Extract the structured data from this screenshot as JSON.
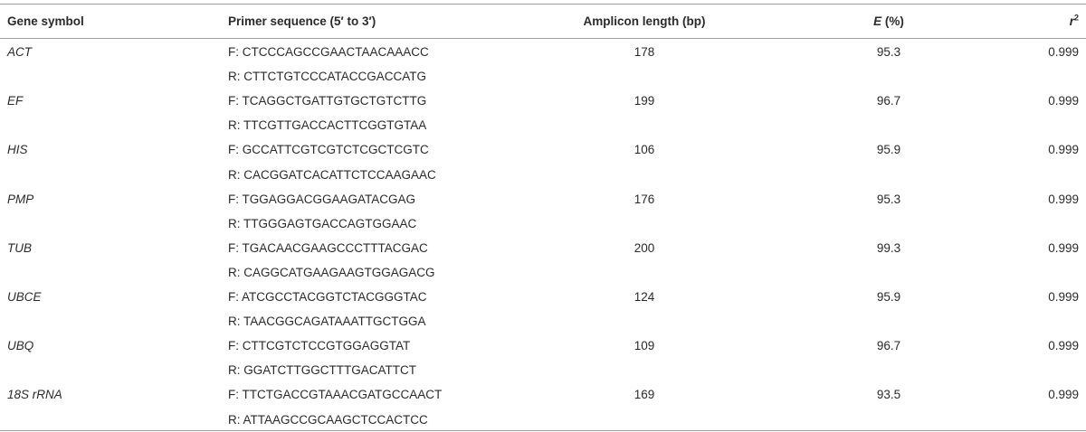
{
  "table": {
    "header": [
      "Gene symbol",
      "Primer sequence (5′ to 3′)",
      "Amplicon length (bp)",
      {
        "symbol": "E",
        "unit": "(%)"
      },
      {
        "symbol": "r",
        "superscript": "2"
      }
    ],
    "rows": [
      [
        "ACT",
        "F: CTCCCAGCCGAACTAACAAACC",
        "R: CTTCTGTCCCATACCGACCATG",
        178,
        95.3,
        0.999
      ],
      [
        "EF",
        "F: TCAGGCTGATTGTGCTGTCTTG",
        "R: TTCGTTGACCACTTCGGTGTAA",
        199,
        96.7,
        0.999
      ],
      [
        "HIS",
        "F: GCCATTCGTCGTCTCGCTCGTC",
        "R: CACGGATCACATTCTCCAAGAAC",
        106,
        95.9,
        0.999
      ],
      [
        "PMP",
        "F: TGGAGGACGGAAGATACGAG",
        "R: TTGGGAGTGACCAGTGGAAC",
        176,
        95.3,
        0.999
      ],
      [
        "TUB",
        "F: TGACAACGAAGCCCTTTACGAC",
        "R: CAGGCATGAAGAAGTGGAGACG",
        200,
        99.3,
        0.999
      ],
      [
        "UBCE",
        "F: ATCGCCTACGGTCTACGGGTAC",
        "R: TAACGGCAGATAAATTGCTGGA",
        124,
        95.9,
        0.999
      ],
      [
        "UBQ",
        "F: CTTCGTCTCCGTGGAGGTAT",
        "R: GGATCTTGGCTTTGACATTCT",
        109,
        96.7,
        0.999
      ],
      [
        "18S rRNA",
        "F: TTCTGACCGTAAACGATGCCAACT",
        "R: ATTAAGCCGCAAGCTCCACTCC",
        169,
        93.5,
        0.999
      ]
    ]
  }
}
